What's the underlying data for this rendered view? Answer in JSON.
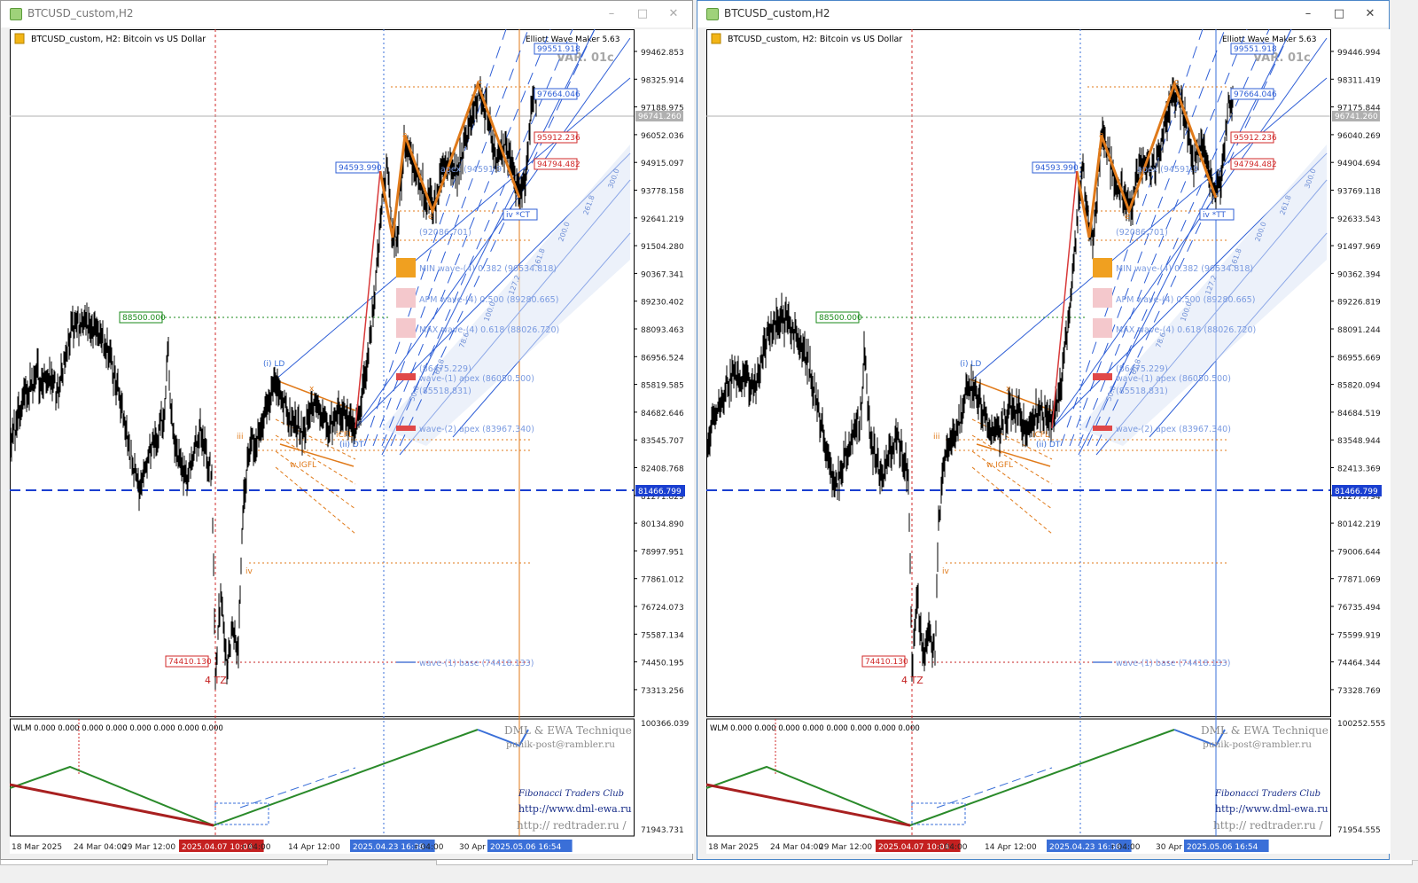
{
  "windows": [
    {
      "title": "BTCUSD_custom,H2",
      "chart_label": "BTCUSD_custom, H2:  Bitcoin vs US Dollar",
      "indicator_name": "Elliott Wave Maker 5.63",
      "variant": "VAR. 01c",
      "price_axis": [
        "99462.853",
        "98325.914",
        "97188.975",
        "96052.036",
        "94915.097",
        "93778.158",
        "92641.219",
        "91504.280",
        "90367.341",
        "89230.402",
        "88093.463",
        "86956.524",
        "85819.585",
        "84682.646",
        "83545.707",
        "82408.768",
        "81271.829",
        "80134.890",
        "78997.951",
        "77861.012",
        "76724.073",
        "75587.134",
        "74450.195",
        "73313.256"
      ],
      "indicator_axis": [
        "100366.039",
        "71943.731"
      ],
      "current_price": "96741.260",
      "hline_price": "81466.799",
      "right_tags": [
        "99551.918",
        "97664.046",
        "95912.236",
        "94794.482"
      ],
      "left_tags": [
        "94593.990",
        "88500.000",
        "74410.130"
      ],
      "target_tag": "iv *CT",
      "time_axis": [
        "18 Mar 2025",
        "24 Mar 04:00",
        "29 Mar 12:00",
        "2025.04.07 10:04",
        "r 04:00",
        "14 Apr 12:00",
        "2025.04.23 16:38",
        "r 04:00",
        "30 Apr 1",
        "2025.05.06 16:54"
      ]
    },
    {
      "title": "BTCUSD_custom,H2",
      "chart_label": "BTCUSD_custom, H2:  Bitcoin vs US Dollar",
      "indicator_name": "Elliott Wave Maker 5.63",
      "variant": "VAR. 01c",
      "price_axis": [
        "99446.994",
        "98311.419",
        "97175.844",
        "96040.269",
        "94904.694",
        "93769.118",
        "92633.543",
        "91497.969",
        "90362.394",
        "89226.819",
        "88091.244",
        "86955.669",
        "85820.094",
        "84684.519",
        "83548.944",
        "82413.369",
        "81277.794",
        "80142.219",
        "79006.644",
        "77871.069",
        "76735.494",
        "75599.919",
        "74464.344",
        "73328.769"
      ],
      "indicator_axis": [
        "100252.555",
        "71954.555"
      ],
      "current_price": "96741.260",
      "hline_price": "81466.799",
      "right_tags": [
        "99551.918",
        "97664.046",
        "95912.236",
        "94794.482"
      ],
      "left_tags": [
        "94593.990",
        "88500.000",
        "74410.130"
      ],
      "target_tag": "iv *TT",
      "time_axis": [
        "18 Mar 2025",
        "24 Mar 04:00",
        "29 Mar 12:00",
        "2025.04.07 10:04",
        "r 04:00",
        "14 Apr 12:00",
        "2025.04.23 16:38",
        "r 04:00",
        "30 Apr 1",
        "2025.05.06 16:54"
      ]
    }
  ],
  "annotations": {
    "min_wave": "MIN wave-(4) 0.382 (90534.818)",
    "apm_wave": "APM wave-(4) 0.500 (89280.665)",
    "max_wave": "MAX wave-(4) 0.618 (88026.720)",
    "level_a": "(86475.229)",
    "wave1_apex": "wave-(1) apex (86050.500)",
    "level_b": "(85518.831)",
    "wave2_apex": "wave-(2) apex (83967.340)",
    "wave1_base": "wave-(1) base (74418.133)",
    "level_c": "(92086.701)",
    "apex_partial": "apex (94591.9",
    "ld": "(i) LD",
    "dt": "(ii) DT",
    "tz": "4 TZ",
    "icfl": "iCFL",
    "igfl": "w IGFL",
    "wlm": "WLM 0.000 0.000 0.000 0.000 0.000 0.000 0.000 0.000",
    "dml_title": "DML & EWA Technique",
    "email": "punik-post@rambler.ru",
    "club": "Fibonacci    Traders    Club",
    "url1": "http://www.dml-ewa.ru",
    "url2": "http:// redtrader.ru /"
  },
  "colors": {
    "price_line": "#000000",
    "wave_orange": "#e07a1a",
    "channel_blue": "#2f5fd6",
    "tag_red": "#d12a2a",
    "tag_green": "#1a8a1a",
    "hline_blue": "#1a3fd0",
    "osc_green": "#2a8a2a",
    "osc_red": "#a82020",
    "osc_blue": "#3a6fd8"
  }
}
